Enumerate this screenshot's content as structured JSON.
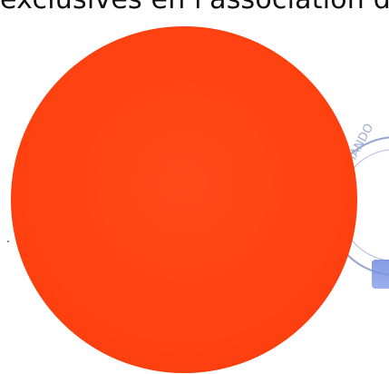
{
  "document": {
    "top_text": "exclusives en l'association de Film",
    "stamp_text": "ARMANDO"
  },
  "colors": {
    "disc_fill": "#ff4414",
    "text": "#111111",
    "stamp_ink": "#7c8fc7"
  },
  "icons": {
    "disc": "red-circle-shape",
    "stamp": "circular-ink-stamp"
  }
}
